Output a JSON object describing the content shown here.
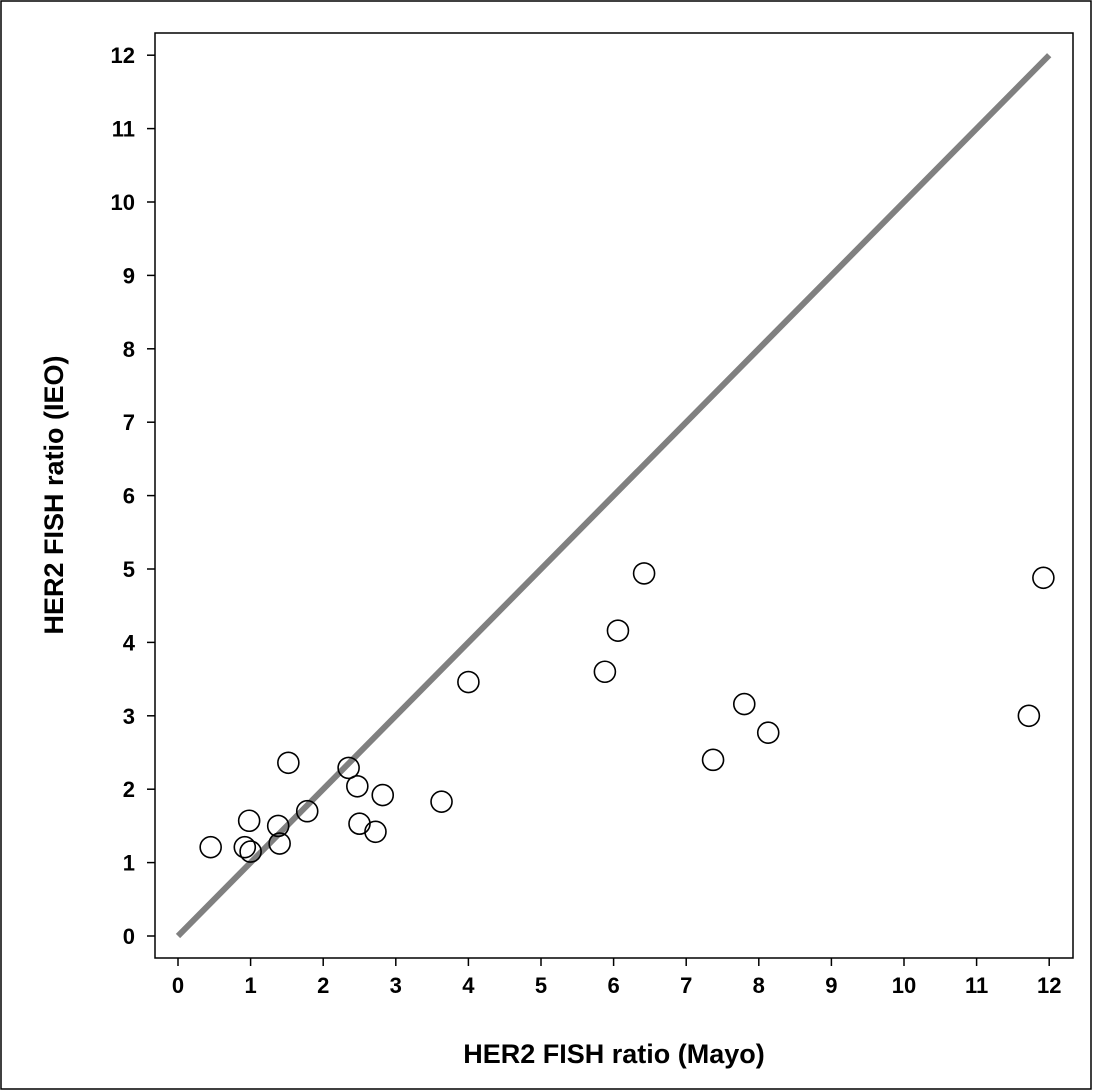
{
  "chart_data": {
    "type": "scatter",
    "xlabel": "HER2 FISH ratio (Mayo)",
    "ylabel": "HER2 FISH ratio (IEO)",
    "xlim": [
      0,
      12
    ],
    "ylim": [
      0,
      12
    ],
    "xticks": [
      "0",
      "1",
      "2",
      "3",
      "4",
      "5",
      "6",
      "7",
      "8",
      "9",
      "10",
      "11",
      "12"
    ],
    "yticks": [
      "0",
      "1",
      "2",
      "3",
      "4",
      "5",
      "6",
      "7",
      "8",
      "9",
      "10",
      "11",
      "12"
    ],
    "grid": false,
    "reference_line": {
      "x": [
        0,
        12
      ],
      "y": [
        0,
        12
      ],
      "color": "#808080"
    },
    "marker": {
      "shape": "open-circle",
      "color": "#000000"
    },
    "points": [
      {
        "x": 0.45,
        "y": 1.21
      },
      {
        "x": 0.92,
        "y": 1.21
      },
      {
        "x": 1.0,
        "y": 1.15
      },
      {
        "x": 0.98,
        "y": 1.57
      },
      {
        "x": 1.4,
        "y": 1.26
      },
      {
        "x": 1.38,
        "y": 1.5
      },
      {
        "x": 1.52,
        "y": 2.36
      },
      {
        "x": 1.78,
        "y": 1.7
      },
      {
        "x": 2.35,
        "y": 2.29
      },
      {
        "x": 2.47,
        "y": 2.04
      },
      {
        "x": 2.5,
        "y": 1.53
      },
      {
        "x": 2.72,
        "y": 1.42
      },
      {
        "x": 2.82,
        "y": 1.92
      },
      {
        "x": 3.63,
        "y": 1.83
      },
      {
        "x": 4.0,
        "y": 3.46
      },
      {
        "x": 5.88,
        "y": 3.6
      },
      {
        "x": 6.06,
        "y": 4.16
      },
      {
        "x": 6.42,
        "y": 4.94
      },
      {
        "x": 7.37,
        "y": 2.4
      },
      {
        "x": 7.8,
        "y": 3.16
      },
      {
        "x": 8.13,
        "y": 2.77
      },
      {
        "x": 11.72,
        "y": 3.0
      },
      {
        "x": 11.92,
        "y": 4.88
      }
    ]
  }
}
